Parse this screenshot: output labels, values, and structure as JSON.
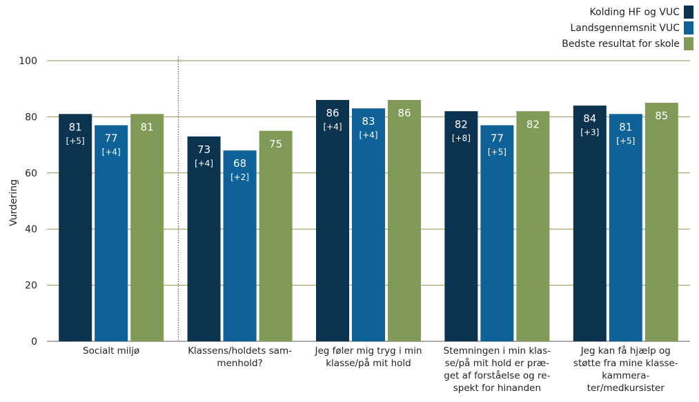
{
  "chart_data": {
    "type": "bar",
    "ylabel": "Vurdering",
    "ylim": [
      0,
      100
    ],
    "yticks": [
      0,
      20,
      40,
      60,
      80,
      100
    ],
    "grid": true,
    "legend_position": "top-right",
    "categories": [
      [
        "Socialt miljø"
      ],
      [
        "Klassens/holdets sam-",
        "menhold?"
      ],
      [
        "Jeg føler mig tryg i min",
        "klasse/på mit hold"
      ],
      [
        "Stemningen i min klas-",
        "se/på mit hold er præ-",
        "get af forståelse og re-",
        "spekt for hinanden"
      ],
      [
        "Jeg kan få hjælp og",
        "støtte fra mine klasse-",
        "kammera-",
        "ter/medkursister"
      ]
    ],
    "series": [
      {
        "name": "Kolding HF og VUC",
        "color": "#0b3350",
        "values": [
          81,
          73,
          86,
          82,
          84
        ],
        "diffs": [
          "[+5]",
          "[+4]",
          "[+4]",
          "[+8]",
          "[+3]"
        ]
      },
      {
        "name": "Landsgennemsnit VUC",
        "color": "#0f6297",
        "values": [
          77,
          68,
          83,
          77,
          81
        ],
        "diffs": [
          "[+4]",
          "[+2]",
          "[+4]",
          "[+5]",
          "[+5]"
        ]
      },
      {
        "name": "Bedste resultat for skole",
        "color": "#819a57",
        "values": [
          81,
          75,
          86,
          82,
          85
        ],
        "diffs": [
          "",
          "",
          "",
          "",
          ""
        ]
      }
    ]
  }
}
